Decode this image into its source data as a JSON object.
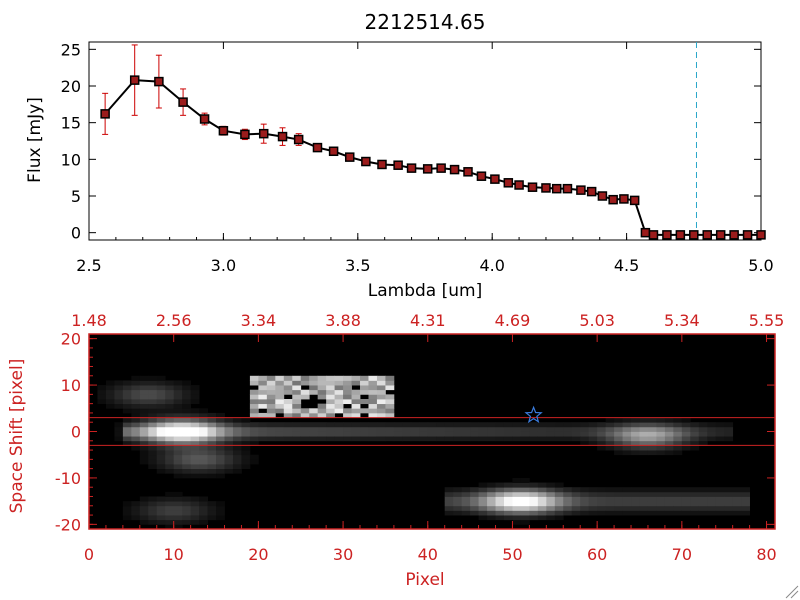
{
  "chart_data": [
    {
      "type": "line",
      "title": "2212514.65",
      "xlabel": "Lambda [um]",
      "ylabel": "Flux [mJy]",
      "xlim": [
        2.5,
        5.0
      ],
      "ylim": [
        -1,
        26
      ],
      "x_ticks": [
        "2.5",
        "3.0",
        "3.5",
        "4.0",
        "4.5",
        "5.0"
      ],
      "y_ticks": [
        "0",
        "5",
        "10",
        "15",
        "20",
        "25"
      ],
      "series": [
        {
          "color": "#000000",
          "marker_fill": "#9b1c1c",
          "error_color": "#cc0000",
          "x": [
            2.56,
            2.67,
            2.76,
            2.85,
            2.93,
            3.0,
            3.08,
            3.15,
            3.22,
            3.28,
            3.35,
            3.41,
            3.47,
            3.53,
            3.59,
            3.65,
            3.7,
            3.76,
            3.81,
            3.86,
            3.91,
            3.96,
            4.01,
            4.06,
            4.1,
            4.15,
            4.2,
            4.24,
            4.28,
            4.33,
            4.37,
            4.41,
            4.45,
            4.49,
            4.53,
            4.57,
            4.6,
            4.65,
            4.7,
            4.75,
            4.8,
            4.85,
            4.9,
            4.95,
            5.0
          ],
          "y": [
            16.2,
            20.8,
            20.6,
            17.8,
            15.5,
            13.9,
            13.4,
            13.5,
            13.1,
            12.7,
            11.6,
            11.1,
            10.3,
            9.7,
            9.3,
            9.2,
            8.8,
            8.7,
            8.8,
            8.6,
            8.3,
            7.7,
            7.3,
            6.8,
            6.5,
            6.2,
            6.1,
            6.0,
            6.0,
            5.8,
            5.6,
            5.0,
            4.5,
            4.6,
            4.4,
            0.0,
            -0.3,
            -0.3,
            -0.3,
            -0.3,
            -0.3,
            -0.3,
            -0.3,
            -0.3,
            -0.3
          ],
          "yerr": [
            2.8,
            4.8,
            3.6,
            1.8,
            0.8,
            0.6,
            0.7,
            1.3,
            1.2,
            0.8,
            0.5,
            0.3,
            0.3,
            0.3,
            0.3,
            0.3,
            0.3,
            0.3,
            0.3,
            0.3,
            0.3,
            0.3,
            0.3,
            0.3,
            0.3,
            0.3,
            0.3,
            0.3,
            0.3,
            0.3,
            0.3,
            0.3,
            0.3,
            0.3,
            0.3,
            0,
            0,
            0,
            0,
            0,
            0,
            0,
            0,
            0,
            0
          ]
        }
      ],
      "reference_line": {
        "x": 4.76,
        "style": "dashed",
        "color": "#2aa7c9"
      },
      "grid": false
    },
    {
      "type": "heatmap",
      "xlabel": "Pixel",
      "ylabel": "Space Shift [pixel]",
      "xlim": [
        0,
        81
      ],
      "ylim": [
        -21,
        21
      ],
      "x_ticks": [
        "0",
        "10",
        "20",
        "30",
        "40",
        "50",
        "60",
        "70",
        "80"
      ],
      "y_ticks": [
        "-20",
        "-10",
        "0",
        "10",
        "20"
      ],
      "top_ticks": [
        "1.48",
        "2.56",
        "3.34",
        "3.88",
        "4.31",
        "4.69",
        "5.03",
        "5.34",
        "5.55"
      ],
      "axis_color": "#cc2222",
      "background": "#000000",
      "extraction_lines": [
        3,
        -3
      ],
      "star_marker": {
        "x": 52.5,
        "y": 3.5,
        "color": "#3a7bdc"
      },
      "blobs": [
        {
          "x": 11,
          "y": 0,
          "intensity": 0.95
        },
        {
          "x": 51,
          "y": -15,
          "intensity": 0.85
        },
        {
          "x": 66,
          "y": -1,
          "intensity": 0.55
        },
        {
          "x": 13,
          "y": -6,
          "intensity": 0.35
        },
        {
          "x": 7,
          "y": 8,
          "intensity": 0.3
        },
        {
          "x": 10,
          "y": -17,
          "intensity": 0.25
        }
      ],
      "trace": {
        "x_start": 4,
        "x_end": 76,
        "y": 0
      },
      "bright_box": {
        "x_start": 19,
        "x_end": 36,
        "y_start": 3,
        "y_end": 12
      }
    }
  ]
}
